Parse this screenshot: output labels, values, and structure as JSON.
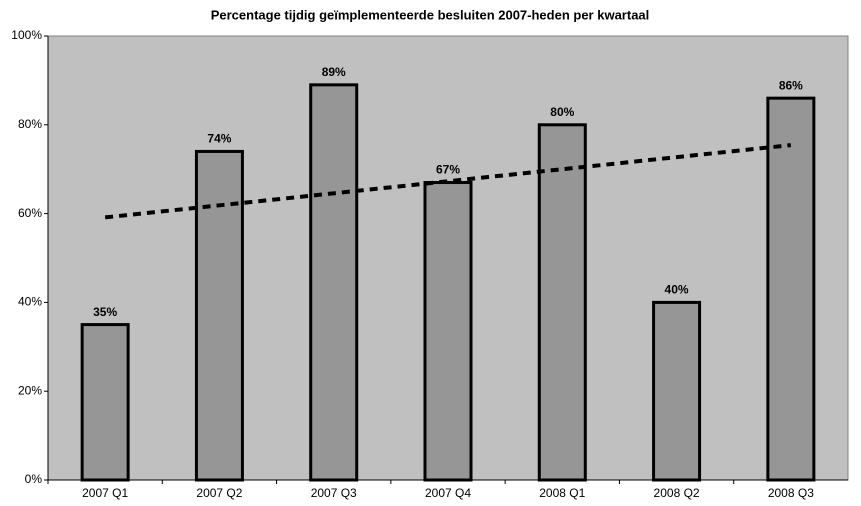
{
  "chart_data": {
    "type": "bar",
    "title": "Percentage tijdig geïmplementeerde besluiten 2007-heden per kwartaal",
    "categories": [
      "2007 Q1",
      "2007 Q2",
      "2007 Q3",
      "2007 Q4",
      "2008 Q1",
      "2008 Q2",
      "2008 Q3"
    ],
    "values": [
      35,
      74,
      89,
      67,
      80,
      40,
      86
    ],
    "value_labels": [
      "35%",
      "74%",
      "89%",
      "67%",
      "80%",
      "40%",
      "86%"
    ],
    "color": "#969696",
    "trendline": "linear",
    "ylim": [
      0,
      100
    ],
    "yticks": [
      {
        "value": 0,
        "label": "0%"
      },
      {
        "value": 20,
        "label": "20%"
      },
      {
        "value": 40,
        "label": "40%"
      },
      {
        "value": 60,
        "label": "60%"
      },
      {
        "value": 80,
        "label": "80%"
      },
      {
        "value": 100,
        "label": "100%"
      }
    ],
    "grid": false
  }
}
